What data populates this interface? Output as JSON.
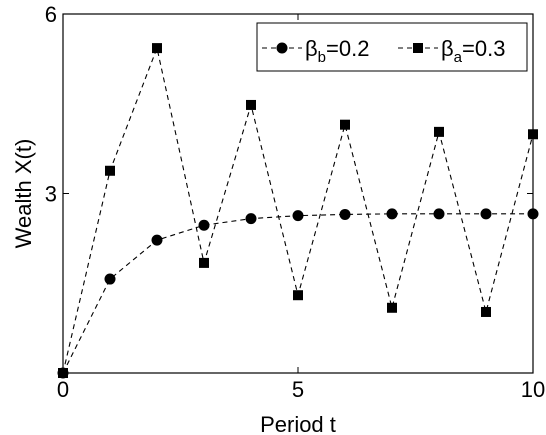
{
  "chart_data": {
    "type": "line",
    "title": "",
    "xlabel": "Period t",
    "ylabel": "Wealth X(t)",
    "xlim": [
      0,
      10
    ],
    "ylim": [
      0,
      6
    ],
    "xticks": [
      0,
      5,
      10
    ],
    "yticks": [
      3,
      6
    ],
    "xtick_labels": [
      "0",
      "5",
      "10"
    ],
    "ytick_labels": [
      "3",
      "6"
    ],
    "grid": false,
    "legend_position": "top-right",
    "series": [
      {
        "name": "β_b=0.2",
        "legend_base": "β",
        "legend_sub": "b",
        "legend_rest": "=0.2",
        "marker": "circle",
        "linestyle": "dashed",
        "color": "#000000",
        "x": [
          0,
          1,
          2,
          3,
          4,
          5,
          6,
          7,
          8,
          9,
          10
        ],
        "y": [
          0,
          1.57,
          2.22,
          2.47,
          2.58,
          2.63,
          2.65,
          2.66,
          2.66,
          2.66,
          2.66
        ]
      },
      {
        "name": "β_a=0.3",
        "legend_base": "β",
        "legend_sub": "a",
        "legend_rest": "=0.3",
        "marker": "square",
        "linestyle": "dashed",
        "color": "#000000",
        "x": [
          0,
          1,
          2,
          3,
          4,
          5,
          6,
          7,
          8,
          9,
          10
        ],
        "y": [
          0,
          3.38,
          5.43,
          1.84,
          4.48,
          1.3,
          4.15,
          1.09,
          4.03,
          1.02,
          3.99
        ]
      }
    ]
  }
}
